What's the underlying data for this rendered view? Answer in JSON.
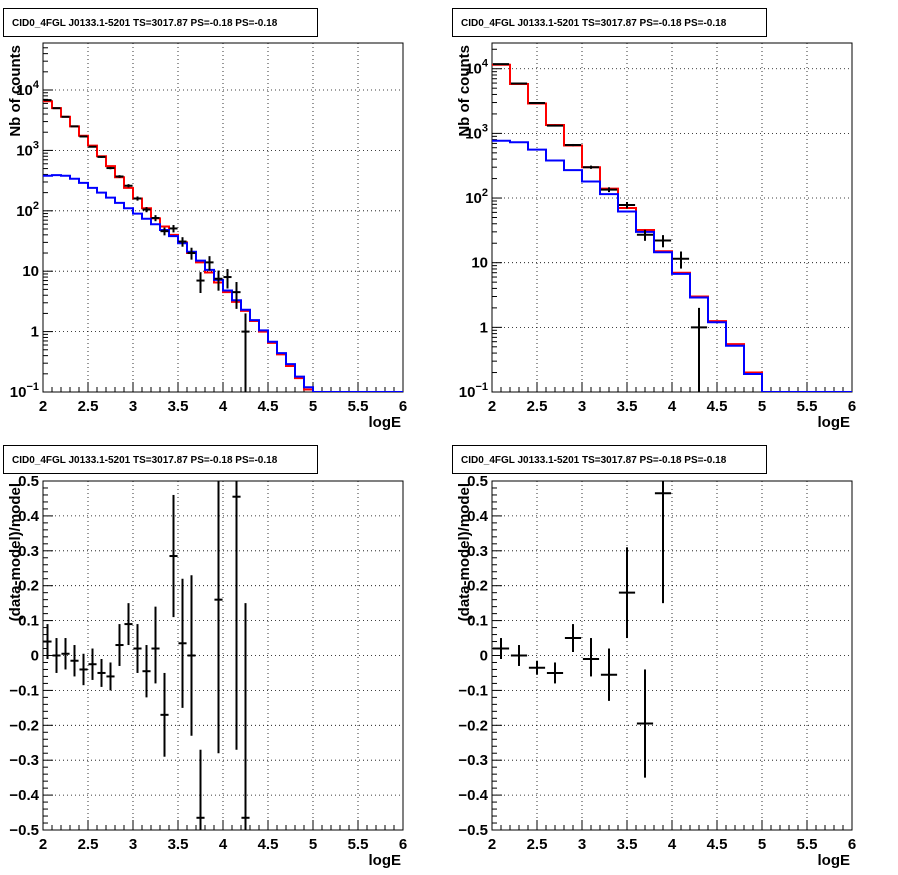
{
  "chart_data": [
    {
      "type": "line",
      "title": "CID0_4FGL J0133.1-5201 TS=3017.87 PS=-0.18 PS=-0.18",
      "xlabel": "logE",
      "ylabel": "Nb of counts",
      "xlim": [
        2,
        6
      ],
      "ylim": [
        0.1,
        60000
      ],
      "yscale": "log",
      "grid": true,
      "xticks": [
        "2",
        "2.5",
        "3",
        "3.5",
        "4",
        "4.5",
        "5",
        "5.5",
        "6"
      ],
      "yticks": [
        {
          "v": 0.1,
          "base": "10",
          "exp": "−1"
        },
        {
          "v": 1,
          "label": "1"
        },
        {
          "v": 10,
          "label": "10"
        },
        {
          "v": 100,
          "base": "10",
          "exp": "2"
        },
        {
          "v": 1000,
          "base": "10",
          "exp": "3"
        },
        {
          "v": 10000,
          "base": "10",
          "exp": "4"
        }
      ],
      "bin_edges": [
        2.0,
        2.1,
        2.2,
        2.3,
        2.4,
        2.5,
        2.6,
        2.7,
        2.8,
        2.9,
        3.0,
        3.1,
        3.2,
        3.3,
        3.4,
        3.5,
        3.6,
        3.7,
        3.8,
        3.9,
        4.0,
        4.1,
        4.2,
        4.3,
        4.4,
        4.5,
        4.6,
        4.7,
        4.8,
        4.9,
        5.0,
        5.1,
        5.2,
        5.3,
        5.4,
        5.5,
        5.6,
        5.7,
        5.8,
        5.9,
        6.0
      ],
      "series": [
        {
          "color": "#ff0000",
          "values": [
            6500,
            5000,
            3600,
            2500,
            1750,
            1200,
            800,
            550,
            360,
            240,
            160,
            110,
            75,
            55,
            40,
            30,
            20,
            14,
            9.5,
            6.5,
            4.5,
            3.1,
            2.2,
            1.5,
            1.0,
            0.65,
            0.42,
            0.27,
            0.17,
            0.11,
            0.08,
            0.08,
            0.08,
            0.08,
            0.08,
            0.08,
            0.08,
            0.08,
            0.08,
            0.08
          ]
        },
        {
          "color": "#0000ff",
          "values": [
            380,
            390,
            380,
            340,
            290,
            240,
            200,
            165,
            135,
            110,
            90,
            74,
            60,
            48,
            38,
            29,
            21,
            15,
            10.5,
            7.2,
            4.8,
            3.3,
            2.3,
            1.55,
            1.05,
            0.68,
            0.44,
            0.29,
            0.18,
            0.12,
            0.08,
            0.08,
            0.08,
            0.08,
            0.08,
            0.08,
            0.08,
            0.08,
            0.08,
            0.08
          ]
        }
      ],
      "points": [
        {
          "x": 2.05,
          "y": 6800
        },
        {
          "x": 2.15,
          "y": 5000
        },
        {
          "x": 2.25,
          "y": 3600
        },
        {
          "x": 2.35,
          "y": 2500
        },
        {
          "x": 2.45,
          "y": 1700
        },
        {
          "x": 2.55,
          "y": 1150
        },
        {
          "x": 2.65,
          "y": 780
        },
        {
          "x": 2.75,
          "y": 510
        },
        {
          "x": 2.85,
          "y": 370
        },
        {
          "x": 2.95,
          "y": 260
        },
        {
          "x": 3.05,
          "y": 160
        },
        {
          "x": 3.15,
          "y": 105
        },
        {
          "x": 3.25,
          "y": 76
        },
        {
          "x": 3.35,
          "y": 46
        },
        {
          "x": 3.45,
          "y": 51
        },
        {
          "x": 3.55,
          "y": 31
        },
        {
          "x": 3.65,
          "y": 20
        },
        {
          "x": 3.75,
          "y": 7.0
        },
        {
          "x": 3.85,
          "y": 14
        },
        {
          "x": 3.95,
          "y": 7.5
        },
        {
          "x": 4.05,
          "y": 8.0
        },
        {
          "x": 4.15,
          "y": 4.5
        },
        {
          "x": 4.25,
          "y": 1.0
        }
      ]
    },
    {
      "type": "line",
      "title": "CID0_4FGL J0133.1-5201 TS=3017.87 PS=-0.18 PS=-0.18",
      "xlabel": "logE",
      "ylabel": "Nb of counts",
      "xlim": [
        2,
        6
      ],
      "ylim": [
        0.1,
        25000
      ],
      "yscale": "log",
      "grid": true,
      "xticks": [
        "2",
        "2.5",
        "3",
        "3.5",
        "4",
        "4.5",
        "5",
        "5.5",
        "6"
      ],
      "yticks": [
        {
          "v": 0.1,
          "base": "10",
          "exp": "−1"
        },
        {
          "v": 1,
          "label": "1"
        },
        {
          "v": 10,
          "label": "10"
        },
        {
          "v": 100,
          "base": "10",
          "exp": "2"
        },
        {
          "v": 1000,
          "base": "10",
          "exp": "3"
        },
        {
          "v": 10000,
          "base": "10",
          "exp": "4"
        }
      ],
      "bin_edges": [
        2.0,
        2.2,
        2.4,
        2.6,
        2.8,
        3.0,
        3.2,
        3.4,
        3.6,
        3.8,
        4.0,
        4.2,
        4.4,
        4.6,
        4.8,
        5.0,
        5.2,
        5.4,
        5.6,
        5.8,
        6.0
      ],
      "series": [
        {
          "color": "#ff0000",
          "values": [
            11500,
            5800,
            2900,
            1350,
            650,
            300,
            140,
            70,
            32,
            15,
            7.0,
            3.0,
            1.25,
            0.55,
            0.2,
            0.08,
            0.08,
            0.08,
            0.08,
            0.08
          ]
        },
        {
          "color": "#0000ff",
          "values": [
            770,
            730,
            560,
            380,
            270,
            180,
            115,
            62,
            30,
            14.5,
            6.7,
            2.9,
            1.2,
            0.52,
            0.19,
            0.08,
            0.08,
            0.08,
            0.08,
            0.08
          ]
        }
      ],
      "points": [
        {
          "x": 2.1,
          "y": 11800
        },
        {
          "x": 2.3,
          "y": 5900
        },
        {
          "x": 2.5,
          "y": 2950
        },
        {
          "x": 2.7,
          "y": 1320
        },
        {
          "x": 2.9,
          "y": 660
        },
        {
          "x": 3.1,
          "y": 300
        },
        {
          "x": 3.3,
          "y": 135
        },
        {
          "x": 3.5,
          "y": 78
        },
        {
          "x": 3.7,
          "y": 27
        },
        {
          "x": 3.9,
          "y": 22
        },
        {
          "x": 4.1,
          "y": 11.5
        },
        {
          "x": 4.3,
          "y": 1.0
        }
      ]
    },
    {
      "type": "scatter",
      "title": "CID0_4FGL J0133.1-5201 TS=3017.87 PS=-0.18 PS=-0.18",
      "xlabel": "logE",
      "ylabel": "(data-model)/model",
      "xlim": [
        2,
        6
      ],
      "ylim": [
        -0.5,
        0.5
      ],
      "grid": true,
      "xticks": [
        "2",
        "2.5",
        "3",
        "3.5",
        "4",
        "4.5",
        "5",
        "5.5",
        "6"
      ],
      "yticks": [
        "−0.5",
        "−0.4",
        "−0.3",
        "−0.2",
        "−0.1",
        "0",
        "0.1",
        "0.2",
        "0.3",
        "0.4",
        "0.5"
      ],
      "points": [
        {
          "x": 2.05,
          "y": 0.04,
          "lo": -0.01,
          "hi": 0.09
        },
        {
          "x": 2.15,
          "y": 0.0,
          "lo": -0.05,
          "hi": 0.05
        },
        {
          "x": 2.25,
          "y": 0.005,
          "lo": -0.04,
          "hi": 0.05
        },
        {
          "x": 2.35,
          "y": -0.015,
          "lo": -0.06,
          "hi": 0.03
        },
        {
          "x": 2.45,
          "y": -0.04,
          "lo": -0.085,
          "hi": 0.005
        },
        {
          "x": 2.55,
          "y": -0.025,
          "lo": -0.07,
          "hi": 0.02
        },
        {
          "x": 2.65,
          "y": -0.05,
          "lo": -0.09,
          "hi": -0.01
        },
        {
          "x": 2.75,
          "y": -0.06,
          "lo": -0.1,
          "hi": -0.02
        },
        {
          "x": 2.85,
          "y": 0.03,
          "lo": -0.03,
          "hi": 0.09
        },
        {
          "x": 2.95,
          "y": 0.09,
          "lo": 0.03,
          "hi": 0.15
        },
        {
          "x": 3.05,
          "y": 0.02,
          "lo": -0.05,
          "hi": 0.09
        },
        {
          "x": 3.15,
          "y": -0.045,
          "lo": -0.12,
          "hi": 0.03
        },
        {
          "x": 3.25,
          "y": 0.02,
          "lo": -0.08,
          "hi": 0.14
        },
        {
          "x": 3.35,
          "y": -0.17,
          "lo": -0.29,
          "hi": -0.05
        },
        {
          "x": 3.45,
          "y": 0.285,
          "lo": 0.11,
          "hi": 0.46
        },
        {
          "x": 3.55,
          "y": 0.035,
          "lo": -0.15,
          "hi": 0.22
        },
        {
          "x": 3.65,
          "y": 0.0,
          "lo": -0.23,
          "hi": 0.23
        },
        {
          "x": 3.75,
          "y": -0.465,
          "lo": -0.5,
          "hi": -0.27
        },
        {
          "x": 3.95,
          "y": 0.16,
          "lo": -0.28,
          "hi": 0.5
        },
        {
          "x": 4.15,
          "y": 0.455,
          "lo": -0.27,
          "hi": 0.5
        },
        {
          "x": 4.25,
          "y": -0.465,
          "lo": -0.5,
          "hi": 0.15
        }
      ]
    },
    {
      "type": "scatter",
      "title": "CID0_4FGL J0133.1-5201 TS=3017.87 PS=-0.18 PS=-0.18",
      "xlabel": "logE",
      "ylabel": "(data-model)/model",
      "xlim": [
        2,
        6
      ],
      "ylim": [
        -0.5,
        0.5
      ],
      "grid": true,
      "xticks": [
        "2",
        "2.5",
        "3",
        "3.5",
        "4",
        "4.5",
        "5",
        "5.5",
        "6"
      ],
      "yticks": [
        "−0.5",
        "−0.4",
        "−0.3",
        "−0.2",
        "−0.1",
        "0",
        "0.1",
        "0.2",
        "0.3",
        "0.4",
        "0.5"
      ],
      "points": [
        {
          "x": 2.1,
          "y": 0.02,
          "lo": -0.01,
          "hi": 0.05
        },
        {
          "x": 2.3,
          "y": 0.0,
          "lo": -0.03,
          "hi": 0.03
        },
        {
          "x": 2.5,
          "y": -0.035,
          "lo": -0.055,
          "hi": -0.015
        },
        {
          "x": 2.7,
          "y": -0.05,
          "lo": -0.08,
          "hi": -0.02
        },
        {
          "x": 2.9,
          "y": 0.05,
          "lo": 0.01,
          "hi": 0.09
        },
        {
          "x": 3.1,
          "y": -0.01,
          "lo": -0.06,
          "hi": 0.05
        },
        {
          "x": 3.3,
          "y": -0.055,
          "lo": -0.13,
          "hi": 0.02
        },
        {
          "x": 3.5,
          "y": 0.18,
          "lo": 0.05,
          "hi": 0.31
        },
        {
          "x": 3.7,
          "y": -0.195,
          "lo": -0.35,
          "hi": -0.04
        },
        {
          "x": 3.9,
          "y": 0.465,
          "lo": 0.15,
          "hi": 0.5
        }
      ]
    }
  ]
}
